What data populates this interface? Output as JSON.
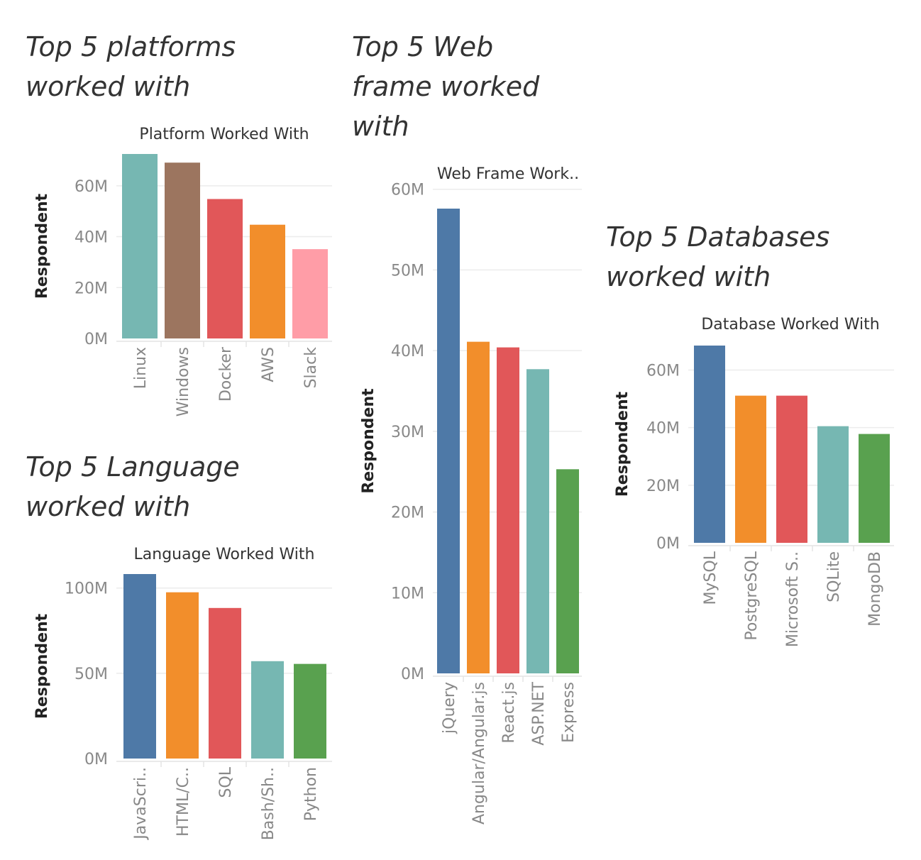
{
  "panels": [
    {
      "id": "platforms",
      "heading": [
        "Top 5 platforms",
        "worked with"
      ]
    },
    {
      "id": "language",
      "heading": [
        "Top 5 Language",
        "worked with"
      ]
    },
    {
      "id": "webframe",
      "heading": [
        "Top 5 Web",
        "frame worked",
        "with"
      ]
    },
    {
      "id": "databases",
      "heading": [
        "Top 5 Databases",
        "worked with"
      ]
    }
  ],
  "chart_data": [
    {
      "type": "bar",
      "title": "Platform Worked With",
      "xlabel": "",
      "ylabel": "Respondent",
      "categories": [
        "Linux",
        "Windows",
        "Docker",
        "AWS",
        "Slack"
      ],
      "values": [
        72.5,
        69.1,
        54.8,
        44.7,
        35.1
      ],
      "colors": [
        "#76b7b2",
        "#9c755f",
        "#e15759",
        "#f28e2b",
        "#ff9da7"
      ],
      "ylim": [
        0,
        72.5
      ],
      "yticks": [
        0,
        20,
        40,
        60
      ],
      "ytick_labels": [
        "0M",
        "20M",
        "40M",
        "60M"
      ],
      "grid": true
    },
    {
      "type": "bar",
      "title": "Language Worked With",
      "xlabel": "",
      "ylabel": "Respondent",
      "categories": [
        "JavaScri..",
        "HTML/C..",
        "SQL",
        "Bash/Sh..",
        "Python"
      ],
      "values": [
        108.2,
        97.5,
        88.3,
        57.1,
        55.5
      ],
      "colors": [
        "#4e79a7",
        "#f28e2b",
        "#e15759",
        "#76b7b2",
        "#59a14f"
      ],
      "ylim": [
        0,
        108.2
      ],
      "yticks": [
        0,
        50,
        100
      ],
      "ytick_labels": [
        "0M",
        "50M",
        "100M"
      ],
      "grid": true
    },
    {
      "type": "bar",
      "title": "Web Frame Work..",
      "xlabel": "",
      "ylabel": "Respondent",
      "categories": [
        "jQuery",
        "Angular/Angular.js",
        "React.js",
        "ASP.NET",
        "Express"
      ],
      "values": [
        57.6,
        41.1,
        40.4,
        37.7,
        25.3
      ],
      "colors": [
        "#4e79a7",
        "#f28e2b",
        "#e15759",
        "#76b7b2",
        "#59a14f"
      ],
      "ylim": [
        0,
        57.6
      ],
      "yticks": [
        0,
        10,
        20,
        30,
        40,
        50,
        60
      ],
      "ytick_labels": [
        "0M",
        "10M",
        "20M",
        "30M",
        "40M",
        "50M",
        "60M"
      ],
      "grid": true
    },
    {
      "type": "bar",
      "title": "Database Worked With",
      "xlabel": "",
      "ylabel": "Respondent",
      "categories": [
        "MySQL",
        "PostgreSQL",
        "Microsoft S..",
        "SQLite",
        "MongoDB"
      ],
      "values": [
        68.5,
        51.1,
        51.1,
        40.5,
        37.8
      ],
      "colors": [
        "#4e79a7",
        "#f28e2b",
        "#e15759",
        "#76b7b2",
        "#59a14f"
      ],
      "ylim": [
        0,
        68.5
      ],
      "yticks": [
        0,
        20,
        40,
        60
      ],
      "ytick_labels": [
        "0M",
        "20M",
        "40M",
        "60M"
      ],
      "grid": true
    }
  ]
}
